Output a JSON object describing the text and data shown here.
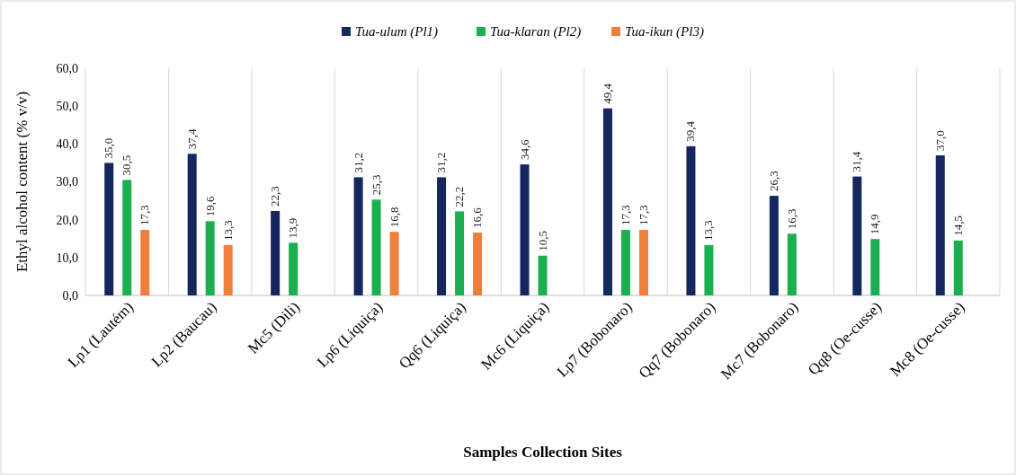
{
  "chart_data": {
    "type": "bar",
    "xlabel": "Samples Collection Sites",
    "ylabel": "Ethyl alcohol content (% v/v)",
    "categories": [
      "Lp1 (Lautém)",
      "Lp2 (Baucau)",
      "Mc5 (Dili)",
      "Lp6 (Liquiça)",
      "Qq6 (Liquiça)",
      "Mc6 (Liquiça)",
      "Lp7 (Bobonaro)",
      "Qq7 (Bobonaro)",
      "Mc7 (Bobonaro)",
      "Qq8 (Oe-cusse)",
      "Mc8 (Oe-cusse)"
    ],
    "series": [
      {
        "name": "Tua-ulum (Pl1)",
        "color": "#14285f",
        "values": [
          35.0,
          37.4,
          22.3,
          31.2,
          31.2,
          34.6,
          49.4,
          39.4,
          26.3,
          31.4,
          37.0
        ],
        "value_labels": [
          "35,0",
          "37,4",
          "22,3",
          "31,2",
          "31,2",
          "34,6",
          "49,4",
          "39,4",
          "26,3",
          "31,4",
          "37,0"
        ]
      },
      {
        "name": "Tua-klaran (Pl2)",
        "color": "#1ab04f",
        "values": [
          30.5,
          19.6,
          13.9,
          25.3,
          22.2,
          10.5,
          17.3,
          13.3,
          16.3,
          14.9,
          14.5
        ],
        "value_labels": [
          "30,5",
          "19,6",
          "13,9",
          "25,3",
          "22,2",
          "10,5",
          "17,3",
          "13,3",
          "16,3",
          "14,9",
          "14,5"
        ]
      },
      {
        "name": "Tua-ikun (Pl3)",
        "color": "#f07f3c",
        "values": [
          17.3,
          13.3,
          null,
          16.8,
          16.6,
          null,
          17.3,
          null,
          null,
          null,
          null
        ],
        "value_labels": [
          "17,3",
          "13,3",
          null,
          "16,8",
          "16,6",
          null,
          "17,3",
          null,
          null,
          null,
          null
        ]
      }
    ],
    "ylim": [
      0,
      60
    ],
    "yticks": [
      {
        "value": 0,
        "label": "0,0"
      },
      {
        "value": 10,
        "label": "10,0"
      },
      {
        "value": 20,
        "label": "20,0"
      },
      {
        "value": 30,
        "label": "30,0"
      },
      {
        "value": 40,
        "label": "40,0"
      },
      {
        "value": 50,
        "label": "50,0"
      },
      {
        "value": 60,
        "label": "60,0"
      }
    ],
    "grid": "x",
    "legend": "top"
  }
}
